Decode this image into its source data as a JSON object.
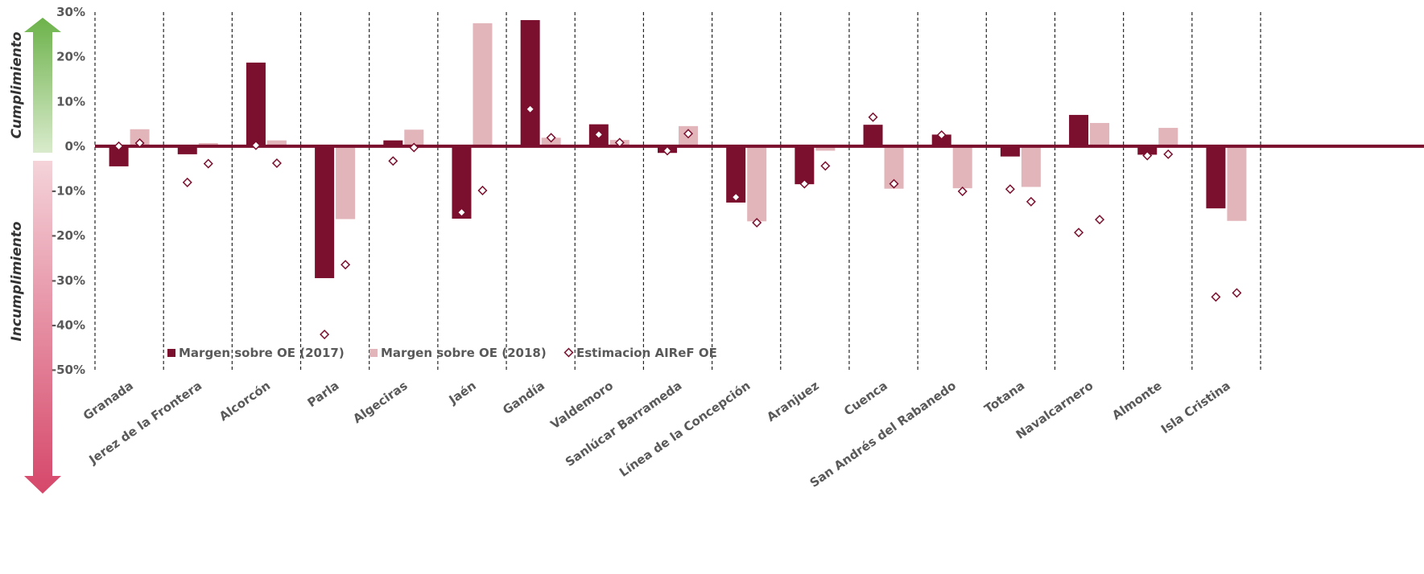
{
  "chart_data": {
    "type": "bar",
    "categories": [
      "Granada",
      "Jerez de la Frontera",
      "Alcorcón",
      "Parla",
      "Algeciras",
      "Jaén",
      "Gandía",
      "Valdemoro",
      "Sanlúcar Barrameda",
      "Línea de la Concepción",
      "Aranjuez",
      "Cuenca",
      "San Andrés del Rabanedo",
      "Totana",
      "Navalcarnero",
      "Almonte",
      "Isla Cristina"
    ],
    "series": [
      {
        "name": "Margen sobre OE (2017)",
        "kind": "bar",
        "color": "#7b0f2e",
        "values": [
          -4.5,
          -1.8,
          18.7,
          -29.5,
          1.3,
          -16.2,
          28.2,
          4.9,
          -1.5,
          -12.6,
          -8.5,
          4.8,
          2.6,
          -2.3,
          7.0,
          -1.9,
          -13.9
        ]
      },
      {
        "name": "Margen sobre OE (2018)",
        "kind": "bar",
        "color": "#e2b5ba",
        "values": [
          3.8,
          0.7,
          1.3,
          -16.3,
          3.7,
          27.5,
          1.9,
          1.4,
          4.5,
          -16.8,
          -1.0,
          -9.5,
          -9.4,
          -9.1,
          5.2,
          4.1,
          -16.7
        ]
      },
      {
        "name": "Estimacion AIReF OE",
        "kind": "marker",
        "color": "#7b0f2e",
        "values_2017": [
          0.0,
          -8.1,
          0.2,
          -42.1,
          -3.3,
          -14.8,
          8.3,
          2.6,
          -1.0,
          -11.4,
          -8.4,
          6.5,
          2.5,
          -9.6,
          -19.3,
          -2.1,
          -33.7
        ],
        "values_2018": [
          0.7,
          -3.9,
          -3.8,
          -26.5,
          -0.3,
          -9.9,
          1.9,
          0.8,
          2.8,
          -17.1,
          -4.4,
          -8.4,
          -10.1,
          -12.4,
          -16.4,
          -1.8,
          -32.8
        ]
      }
    ],
    "ylim": [
      -50,
      30
    ],
    "yticks": [
      "30%",
      "20%",
      "10%",
      "0%",
      "-10%",
      "-20%",
      "-30%",
      "-40%",
      "-50%"
    ],
    "ytick_values": [
      30,
      20,
      10,
      0,
      -10,
      -20,
      -30,
      -40,
      -50
    ],
    "legend_placement": "lower-left inside plot",
    "category_separators": "dashed vertical lines",
    "arrow_labels": {
      "top": "Cumplimiento",
      "bottom": "Incumplimiento"
    },
    "zero_line_color": "#7b0f2e"
  }
}
